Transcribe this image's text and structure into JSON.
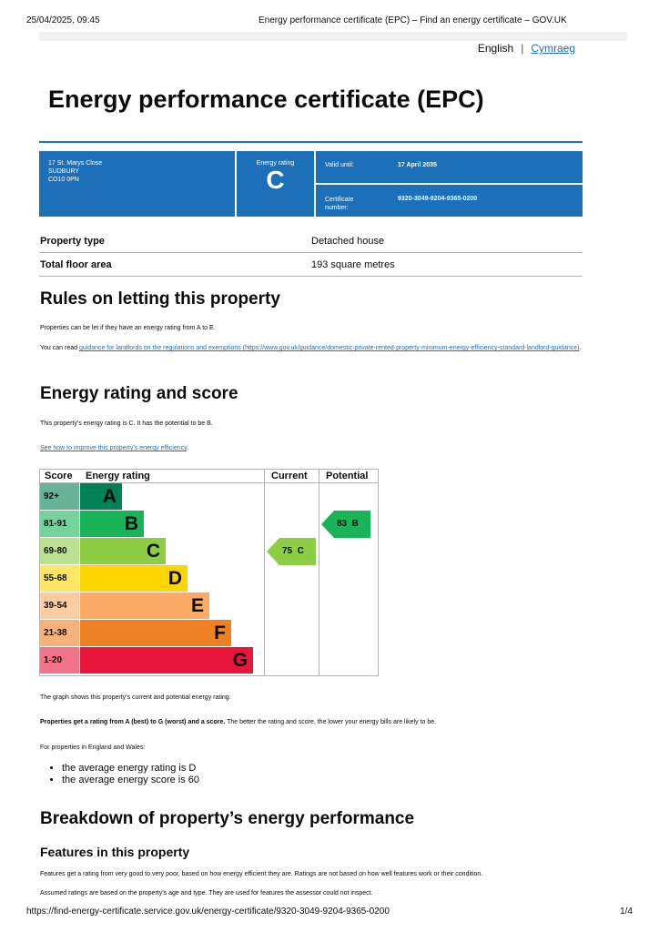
{
  "print_header": {
    "datetime": "25/04/2025, 09:45",
    "page_title": "Energy performance certificate (EPC) – Find an energy certificate – GOV.UK"
  },
  "language": {
    "english": "English",
    "separator": "|",
    "welsh": "Cymraeg"
  },
  "title": "Energy performance certificate (EPC)",
  "summary": {
    "address": [
      "17 St. Marys Close",
      "SUDBURY",
      "CO10 0PN"
    ],
    "rating_label": "Energy rating",
    "rating": "C",
    "valid_until_label": "Valid until:",
    "valid_until": "17 April 2035",
    "certificate_label": [
      "Certificate",
      "number:"
    ],
    "certificate_number": "9320-3049-9204-9365-0200"
  },
  "property": {
    "rows": [
      {
        "label": "Property type",
        "value": "Detached house"
      },
      {
        "label": "Total floor area",
        "value": "193 square metres"
      }
    ]
  },
  "letting": {
    "heading": "Rules on letting this property",
    "para1": "Properties can be let if they have an energy rating from A to E.",
    "para2_prefix": "You can read ",
    "para2_link": "guidance for landlords on the regulations and exemptions (https://www.gov.uk/guidance/domestic-private-rented-property-minimum-energy-efficiency-standard-landlord-guidance)",
    "para2_suffix": "."
  },
  "rating_section": {
    "heading": "Energy rating and score",
    "para1": "This property’s energy rating is C. It has the potential to be B.",
    "link": "See how to improve this property’s energy efficiency",
    "link_suffix": "."
  },
  "chart_data": {
    "type": "bar",
    "headers": {
      "score": "Score",
      "rating": "Energy rating",
      "current": "Current",
      "potential": "Potential"
    },
    "bands": [
      {
        "range": "92+",
        "letter": "A",
        "color": "#008054",
        "score_bg": "#66b398"
      },
      {
        "range": "81-91",
        "letter": "B",
        "color": "#19b459",
        "score_bg": "#75d29b"
      },
      {
        "range": "69-80",
        "letter": "C",
        "color": "#8dce46",
        "score_bg": "#bbe290"
      },
      {
        "range": "55-68",
        "letter": "D",
        "color": "#ffd500",
        "score_bg": "#ffe666"
      },
      {
        "range": "39-54",
        "letter": "E",
        "color": "#fcaa65",
        "score_bg": "#fdcca3"
      },
      {
        "range": "21-38",
        "letter": "F",
        "color": "#ef8023",
        "score_bg": "#f5b37b"
      },
      {
        "range": "1-20",
        "letter": "G",
        "color": "#e9153b",
        "score_bg": "#f27389"
      }
    ],
    "current": {
      "score": 75,
      "letter": "C",
      "label": "75  C",
      "color": "#8dce46"
    },
    "potential": {
      "score": 83,
      "letter": "B",
      "label": "83  B",
      "color": "#19b459"
    }
  },
  "graph_notes": {
    "para1": "The graph shows this property’s current and potential energy rating.",
    "para2_bold": "Properties get a rating from A (best) to G (worst) and a score.",
    "para2_rest": " The better the rating and score, the lower your energy bills are likely to be.",
    "para3": "For properties in England and Wales:",
    "bullets": [
      "the average energy rating is D",
      "the average energy score is 60"
    ]
  },
  "breakdown": {
    "heading": "Breakdown of property’s energy performance",
    "subheading": "Features in this property",
    "para1": "Features get a rating from very good to very poor, based on how energy efficient they are. Ratings are not based on how well features work or their condition.",
    "para2": "Assumed ratings are based on the property’s age and type. They are used for features the assessor could not inspect."
  },
  "print_footer": {
    "url": "https://find-energy-certificate.service.gov.uk/energy-certificate/9320-3049-9204-9365-0200",
    "page": "1/4"
  }
}
